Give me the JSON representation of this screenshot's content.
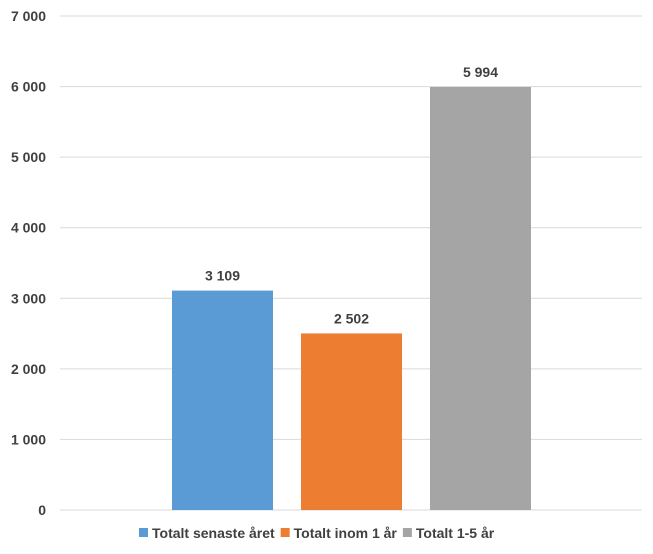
{
  "chart_data": {
    "type": "bar",
    "title": "",
    "xlabel": "",
    "ylabel": "",
    "ylim": [
      0,
      7000
    ],
    "yticks": [
      0,
      1000,
      2000,
      3000,
      4000,
      5000,
      6000,
      7000
    ],
    "ytick_labels": [
      "0",
      "1 000",
      "2 000",
      "3 000",
      "4 000",
      "5 000",
      "6 000",
      "7 000"
    ],
    "grid": true,
    "legend_position": "bottom",
    "series": [
      {
        "name": "Totalt senaste året",
        "values": [
          3109
        ],
        "value_label": "3 109",
        "color": "#5b9bd5"
      },
      {
        "name": "Totalt inom 1 år",
        "values": [
          2502
        ],
        "value_label": "2 502",
        "color": "#ed7d31"
      },
      {
        "name": "Totalt 1-5 år",
        "values": [
          5994
        ],
        "value_label": "5 994",
        "color": "#a5a5a5"
      }
    ]
  }
}
